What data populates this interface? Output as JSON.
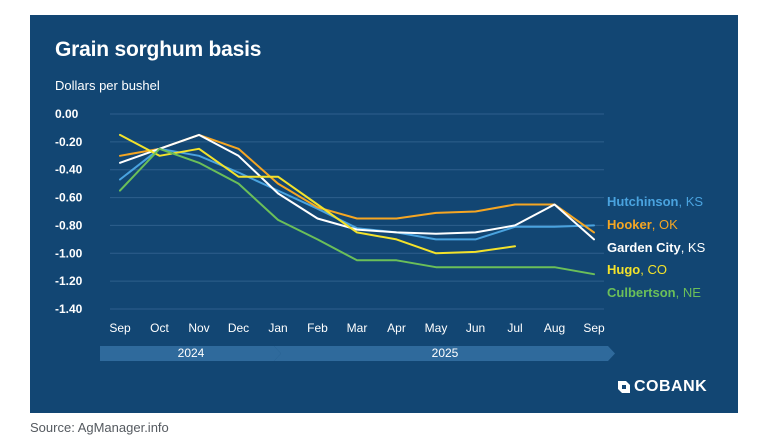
{
  "chart_data": {
    "type": "line",
    "title": "Grain sorghum basis",
    "ylabel": "Dollars per bushel",
    "ylim": [
      -1.4,
      0.0
    ],
    "yticks": [
      "0.00",
      "-0.20",
      "-0.40",
      "-0.60",
      "-0.80",
      "-1.00",
      "-1.20",
      "-1.40"
    ],
    "ytick_values": [
      0,
      -0.2,
      -0.4,
      -0.6,
      -0.8,
      -1.0,
      -1.2,
      -1.4
    ],
    "categories": [
      "Sep",
      "Oct",
      "Nov",
      "Dec",
      "Jan",
      "Feb",
      "Mar",
      "Apr",
      "May",
      "Jun",
      "Jul",
      "Aug",
      "Sep"
    ],
    "year_bands": [
      {
        "label": "2024",
        "from": 0,
        "to": 4
      },
      {
        "label": "2025",
        "from": 4,
        "to": 12
      }
    ],
    "series": [
      {
        "name": "Hutchinson",
        "state": "KS",
        "color": "#4aa3df",
        "values": [
          -0.47,
          -0.25,
          -0.3,
          -0.42,
          -0.55,
          -0.68,
          -0.82,
          -0.85,
          -0.9,
          -0.9,
          -0.81,
          -0.81,
          -0.8
        ]
      },
      {
        "name": "Hooker",
        "state": "OK",
        "color": "#f5a623",
        "values": [
          -0.3,
          -0.25,
          -0.15,
          -0.25,
          -0.5,
          -0.67,
          -0.75,
          -0.75,
          -0.71,
          -0.7,
          -0.65,
          -0.65,
          -0.85
        ]
      },
      {
        "name": "Garden City",
        "state": "KS",
        "color": "#ffffff",
        "values": [
          -0.35,
          -0.25,
          -0.15,
          -0.3,
          -0.57,
          -0.75,
          -0.83,
          -0.85,
          -0.86,
          -0.85,
          -0.8,
          -0.65,
          -0.9
        ]
      },
      {
        "name": "Hugo",
        "state": "CO",
        "color": "#f3e22b",
        "values": [
          -0.15,
          -0.3,
          -0.25,
          -0.45,
          -0.45,
          -0.65,
          -0.85,
          -0.9,
          -1.0,
          -0.99,
          -0.95,
          null,
          null
        ]
      },
      {
        "name": "Culbertson",
        "state": "NE",
        "color": "#6bbf59",
        "values": [
          -0.55,
          -0.25,
          -0.35,
          -0.5,
          -0.76,
          -0.9,
          -1.05,
          -1.05,
          -1.1,
          -1.1,
          -1.1,
          -1.1,
          -1.15
        ]
      }
    ]
  },
  "source": "Source: AgManager.info",
  "logo_text": "COBANK"
}
